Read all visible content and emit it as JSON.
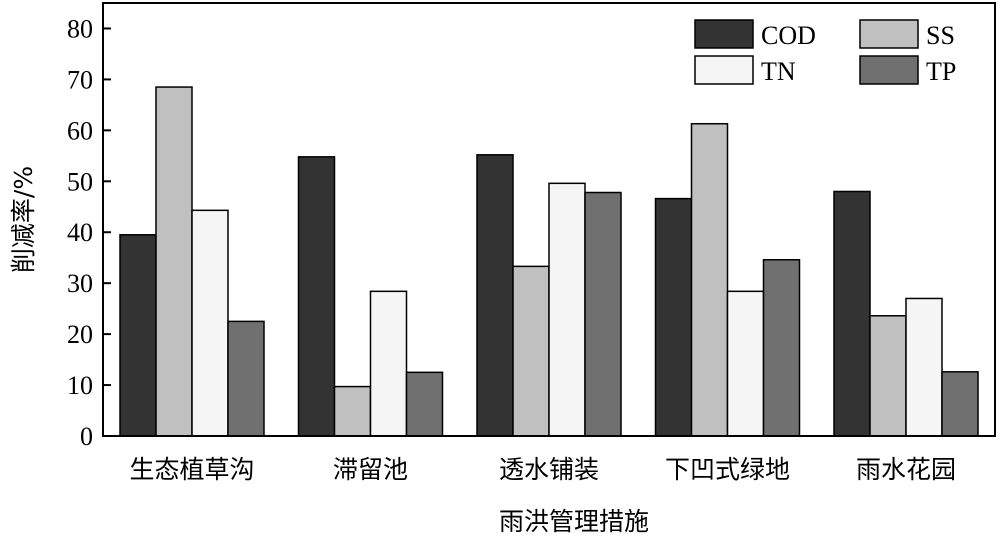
{
  "chart_data": {
    "type": "bar",
    "title": "",
    "xlabel": "雨洪管理措施",
    "ylabel": "削减率/%",
    "ylim": [
      0,
      85
    ],
    "yticks": [
      0,
      10,
      20,
      30,
      40,
      50,
      60,
      70,
      80
    ],
    "grid": false,
    "legend_position": "top-right",
    "categories": [
      "生态植草沟",
      "滞留池",
      "透水铺装",
      "下凹式绿地",
      "雨水花园"
    ],
    "series": [
      {
        "name": "COD",
        "color": "#333333",
        "values": [
          39.5,
          54.8,
          55.2,
          46.6,
          48.0
        ]
      },
      {
        "name": "SS",
        "color": "#c0c0c0",
        "values": [
          68.5,
          9.7,
          33.3,
          61.3,
          23.6
        ]
      },
      {
        "name": "TN",
        "color": "#f5f5f5",
        "values": [
          44.3,
          28.4,
          49.6,
          28.4,
          27.0
        ]
      },
      {
        "name": "TP",
        "color": "#707070",
        "values": [
          22.5,
          12.5,
          47.8,
          34.6,
          12.6
        ]
      }
    ]
  }
}
